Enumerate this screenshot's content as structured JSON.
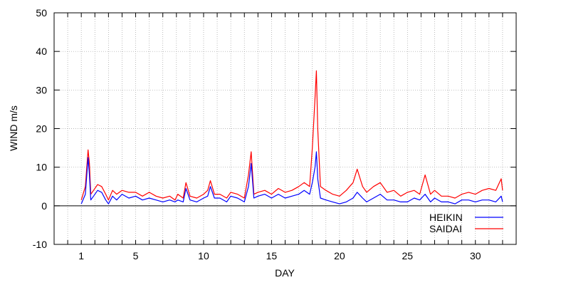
{
  "chart_data": {
    "type": "line",
    "xlabel": "DAY",
    "ylabel": "WIND m/s",
    "xlim": [
      -1,
      33
    ],
    "ylim": [
      -10,
      50
    ],
    "x_ticks": [
      {
        "value": 1,
        "label": "1"
      },
      {
        "value": 5,
        "label": "5"
      },
      {
        "value": 10,
        "label": "10"
      },
      {
        "value": 15,
        "label": "15"
      },
      {
        "value": 20,
        "label": "20"
      },
      {
        "value": 25,
        "label": "25"
      },
      {
        "value": 30,
        "label": "30"
      }
    ],
    "x_grid": [
      0,
      1,
      2,
      3,
      4,
      5,
      6,
      7,
      8,
      9,
      10,
      11,
      12,
      13,
      14,
      15,
      16,
      17,
      18,
      19,
      20,
      21,
      22,
      23,
      24,
      25,
      26,
      27,
      28,
      29,
      30,
      31,
      32
    ],
    "y_ticks": [
      {
        "value": -10,
        "label": "-10"
      },
      {
        "value": 0,
        "label": "0"
      },
      {
        "value": 10,
        "label": "10"
      },
      {
        "value": 20,
        "label": "20"
      },
      {
        "value": 30,
        "label": "30"
      },
      {
        "value": 40,
        "label": "40"
      },
      {
        "value": 50,
        "label": "50"
      }
    ],
    "grid": true,
    "zero_line": true,
    "legend": {
      "placement": "bottom-right"
    },
    "series": [
      {
        "name": "HEIKIN",
        "color": "#0000ff",
        "x": [
          1,
          1.3,
          1.5,
          1.6,
          1.7,
          1.9,
          2.2,
          2.5,
          2.8,
          3.0,
          3.3,
          3.6,
          4.0,
          4.5,
          5.0,
          5.5,
          6.0,
          6.5,
          7.0,
          7.5,
          7.9,
          8.1,
          8.5,
          8.7,
          9.0,
          9.5,
          10.0,
          10.3,
          10.5,
          10.8,
          11.2,
          11.7,
          12.0,
          12.5,
          13.0,
          13.3,
          13.5,
          13.7,
          14.0,
          14.5,
          15.0,
          15.5,
          16.0,
          16.5,
          17.0,
          17.4,
          17.8,
          18.0,
          18.2,
          18.3,
          18.4,
          18.6,
          19.0,
          19.5,
          20.0,
          20.5,
          21.0,
          21.3,
          21.7,
          22.0,
          22.5,
          23.0,
          23.5,
          24.0,
          24.5,
          25.0,
          25.5,
          25.9,
          26.3,
          26.7,
          27.0,
          27.5,
          28.0,
          28.5,
          29.0,
          29.5,
          30.0,
          30.5,
          31.0,
          31.5,
          31.9,
          32.0
        ],
        "values": [
          0.5,
          3,
          12.5,
          8,
          1.5,
          2.5,
          4,
          3.5,
          1.5,
          0.5,
          2.5,
          1.5,
          3,
          2,
          2.5,
          1.5,
          2,
          1.5,
          1,
          1.5,
          1,
          1.5,
          1,
          4.5,
          1.5,
          1,
          2,
          2.5,
          5,
          2,
          2,
          1,
          2.5,
          2,
          1,
          5,
          11,
          2,
          2.5,
          3,
          2,
          3,
          2,
          2.5,
          3,
          4,
          3,
          6,
          10,
          14,
          7,
          2,
          1.5,
          1,
          0.5,
          1,
          2,
          3.5,
          2,
          1,
          2,
          3,
          1.5,
          1.5,
          1,
          1,
          2,
          1.5,
          3,
          1,
          2,
          1,
          1,
          0.5,
          1.5,
          1.5,
          1,
          1.5,
          1.5,
          1,
          2.5,
          1
        ]
      },
      {
        "name": "SAIDAI",
        "color": "#ff0000",
        "x": [
          1,
          1.3,
          1.5,
          1.6,
          1.7,
          1.9,
          2.2,
          2.5,
          2.8,
          3.0,
          3.3,
          3.6,
          4.0,
          4.5,
          5.0,
          5.5,
          6.0,
          6.5,
          7.0,
          7.5,
          7.9,
          8.1,
          8.5,
          8.7,
          9.0,
          9.5,
          10.0,
          10.3,
          10.5,
          10.8,
          11.2,
          11.7,
          12.0,
          12.5,
          13.0,
          13.3,
          13.5,
          13.7,
          14.0,
          14.5,
          15.0,
          15.5,
          16.0,
          16.5,
          17.0,
          17.4,
          17.8,
          18.0,
          18.2,
          18.3,
          18.4,
          18.6,
          19.0,
          19.5,
          20.0,
          20.5,
          21.0,
          21.3,
          21.7,
          22.0,
          22.5,
          23.0,
          23.5,
          24.0,
          24.5,
          25.0,
          25.5,
          25.9,
          26.3,
          26.7,
          27.0,
          27.5,
          28.0,
          28.5,
          29.0,
          29.5,
          30.0,
          30.5,
          31.0,
          31.5,
          31.9,
          32.0
        ],
        "values": [
          1.5,
          5,
          14.5,
          11,
          3,
          4,
          5.5,
          5,
          3,
          1.5,
          4,
          3,
          4,
          3.5,
          3.5,
          2.5,
          3.5,
          2.5,
          2,
          2.5,
          1.5,
          3,
          2,
          6,
          2.5,
          2,
          3,
          4,
          6.5,
          3,
          3,
          2,
          3.5,
          3,
          2,
          8,
          14,
          3,
          3.5,
          4,
          3,
          4.5,
          3.5,
          4,
          5,
          6,
          5,
          15,
          28,
          35,
          20,
          5,
          4,
          3,
          2.5,
          4,
          6,
          9.5,
          5,
          3.5,
          5,
          6,
          3.5,
          4,
          2.5,
          3.5,
          4,
          3,
          8,
          3,
          4,
          2.5,
          2.5,
          2,
          3,
          3.5,
          3,
          4,
          4.5,
          4,
          7,
          4
        ]
      }
    ]
  }
}
